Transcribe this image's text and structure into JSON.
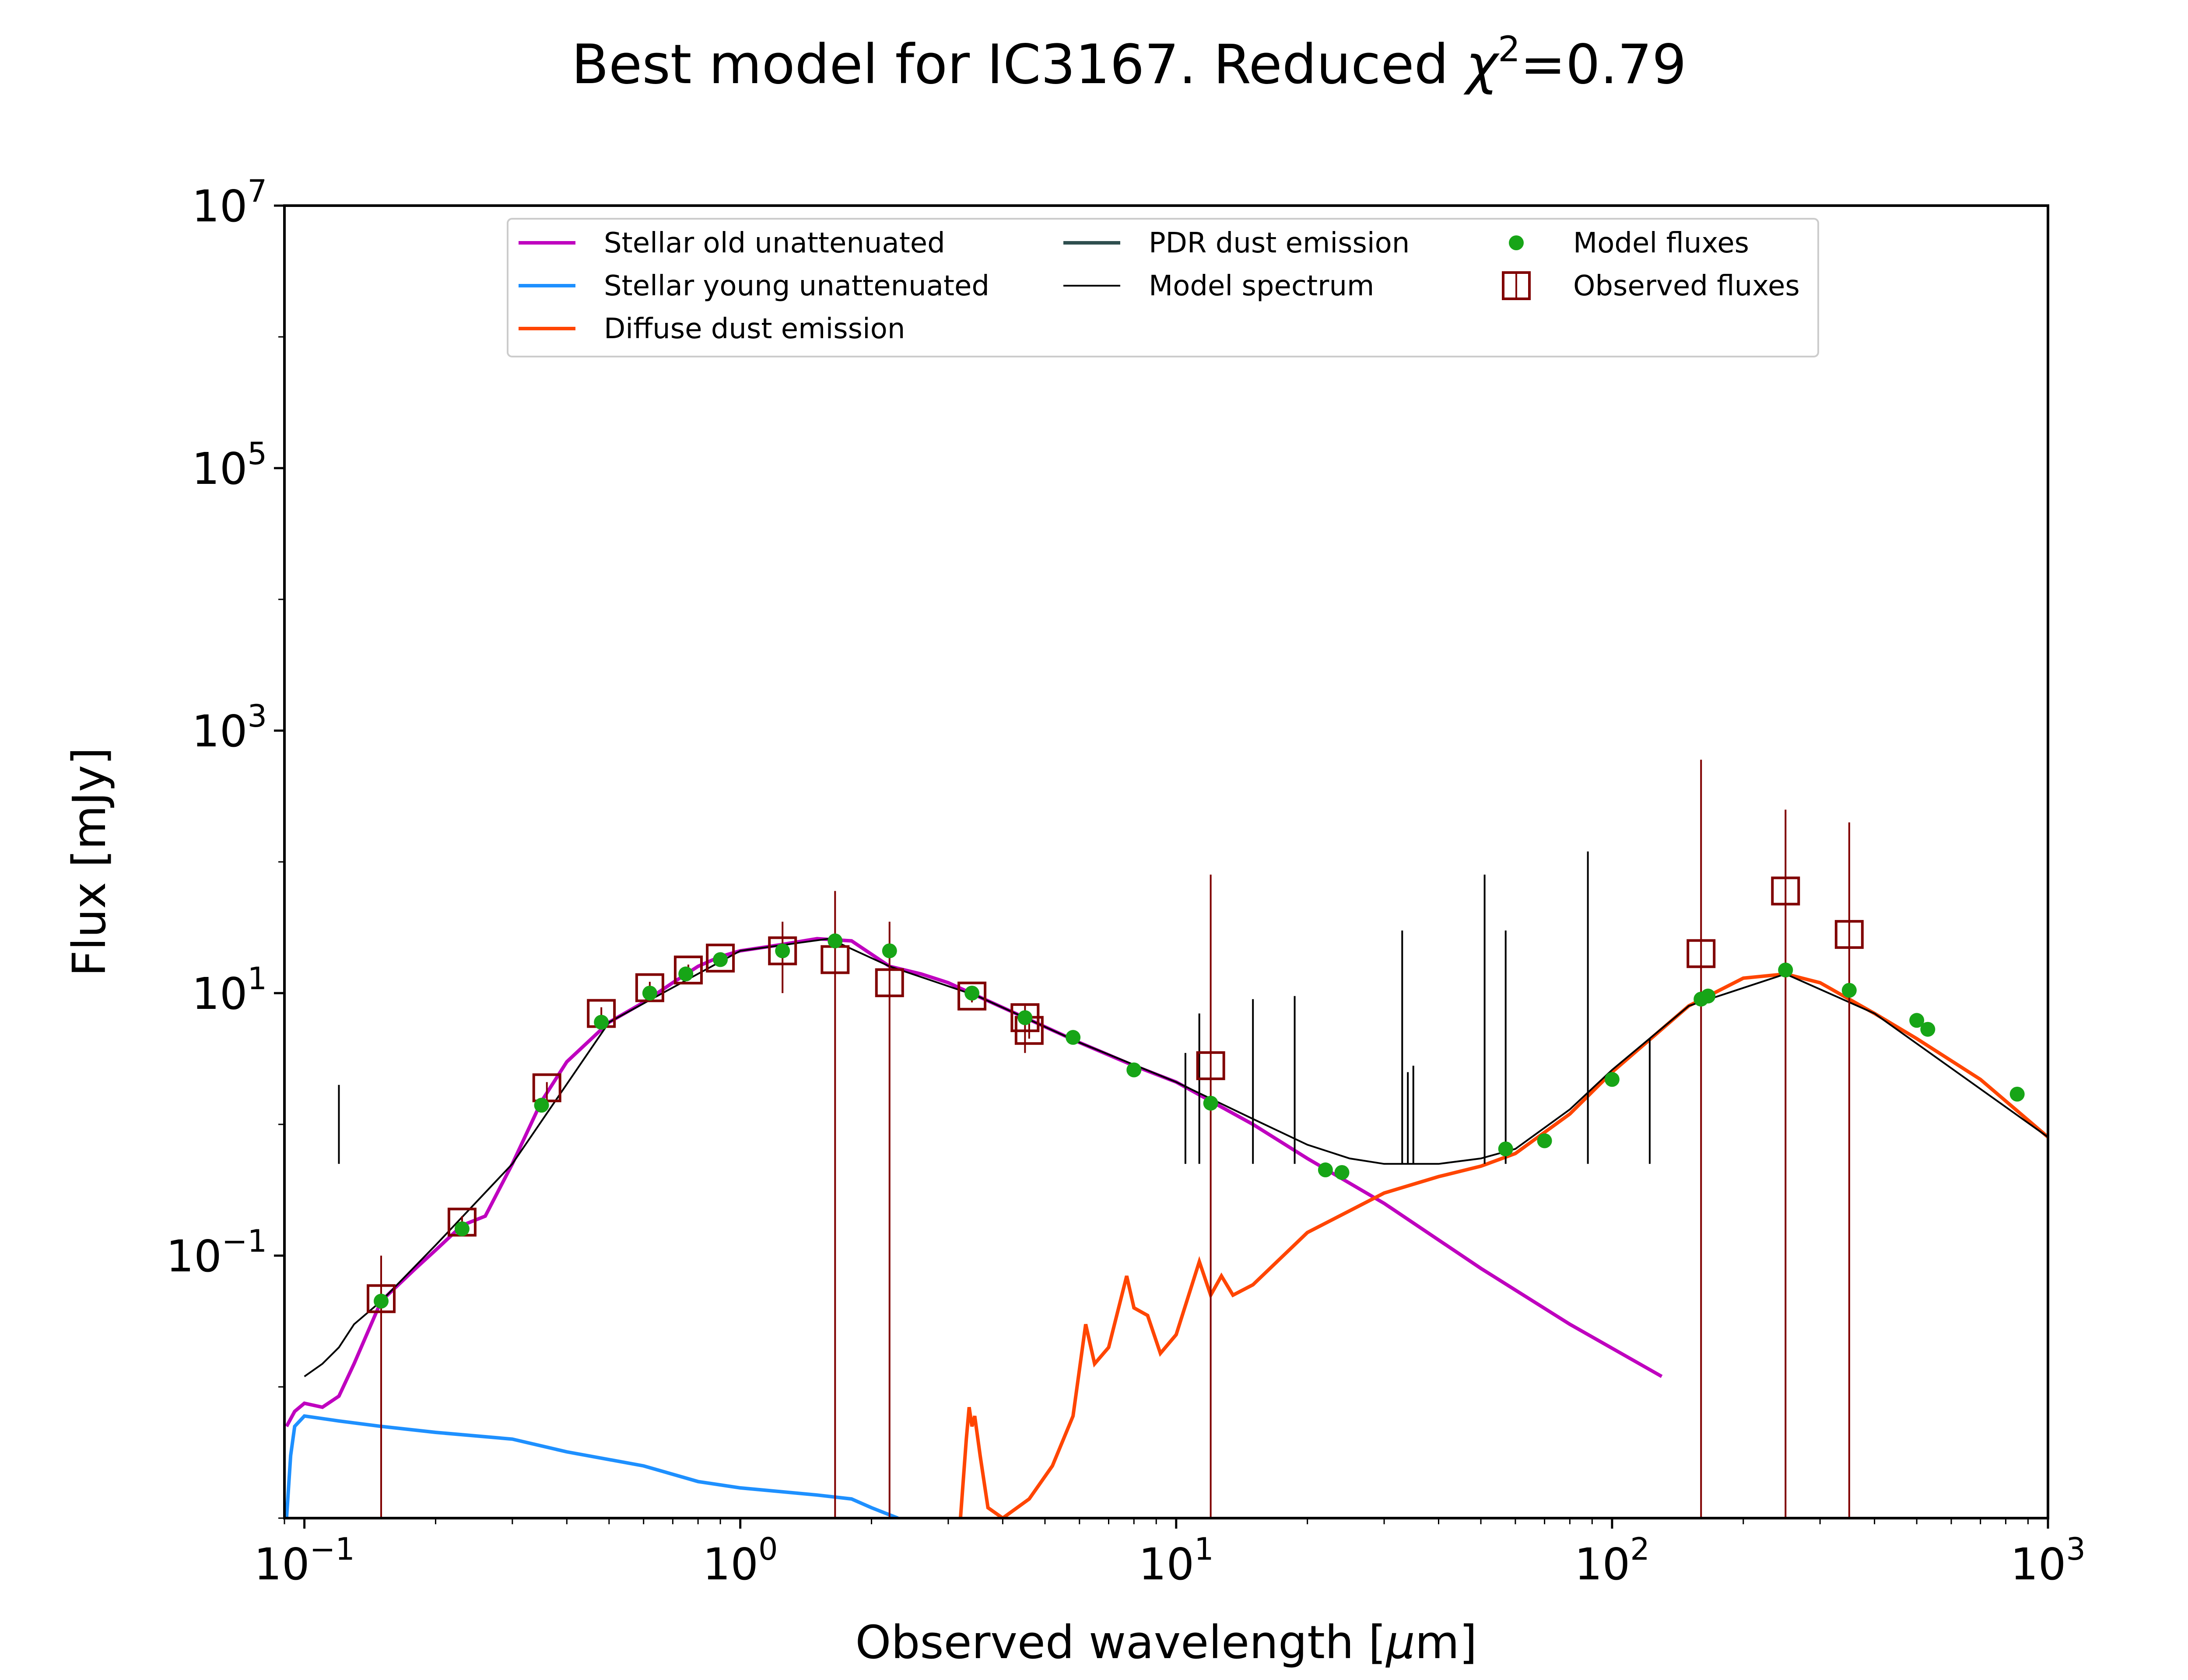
{
  "chart_data": {
    "type": "line",
    "title": "Best model for IC3167. Reduced χ²=0.79",
    "title_parts": {
      "main": "Best model for IC3167. Reduced ",
      "chi": "χ",
      "sup": "2",
      "eq": "=0.79"
    },
    "xlabel": "Observed wavelength [μm]",
    "xlabel_parts": {
      "pre": "Observed wavelength [",
      "mu": "μ",
      "post": "m]"
    },
    "ylabel": "Flux [mJy]",
    "x_scale": "log",
    "y_scale": "log",
    "xlim": [
      0.09,
      1000
    ],
    "ylim": [
      0.001,
      10000000
    ],
    "x_ticks": [
      {
        "value": 0.1,
        "base": "10",
        "exp": "−1"
      },
      {
        "value": 1,
        "base": "10",
        "exp": "0"
      },
      {
        "value": 10,
        "base": "10",
        "exp": "1"
      },
      {
        "value": 100,
        "base": "10",
        "exp": "2"
      },
      {
        "value": 1000,
        "base": "10",
        "exp": "3"
      }
    ],
    "y_ticks": [
      {
        "value": 0.1,
        "base": "10",
        "exp": "−1"
      },
      {
        "value": 10,
        "base": "10",
        "exp": "1"
      },
      {
        "value": 1000,
        "base": "10",
        "exp": "3"
      },
      {
        "value": 100000,
        "base": "10",
        "exp": "5"
      },
      {
        "value": 10000000,
        "base": "10",
        "exp": "7"
      }
    ],
    "legend_position": "top-center",
    "legend": [
      {
        "label": "Stellar old unattenuated",
        "color": "#bf00bf",
        "marker": "line"
      },
      {
        "label": "Stellar young unattenuated",
        "color": "#1e90ff",
        "marker": "line"
      },
      {
        "label": "Diffuse dust emission",
        "color": "#ff4500",
        "marker": "line"
      },
      {
        "label": "PDR dust emission",
        "color": "#2f4f4f",
        "marker": "line"
      },
      {
        "label": "Model spectrum",
        "color": "#000000",
        "marker": "thinline"
      },
      {
        "label": "Model fluxes",
        "color": "#17a517",
        "marker": "dot"
      },
      {
        "label": "Observed fluxes",
        "color": "#800000",
        "marker": "square"
      }
    ],
    "series": [
      {
        "name": "Stellar old unattenuated",
        "color": "#bf00bf",
        "points": [
          [
            0.091,
            0.005
          ],
          [
            0.095,
            0.0065
          ],
          [
            0.1,
            0.0075
          ],
          [
            0.11,
            0.007
          ],
          [
            0.12,
            0.0085
          ],
          [
            0.13,
            0.015
          ],
          [
            0.15,
            0.045
          ],
          [
            0.18,
            0.08
          ],
          [
            0.2,
            0.11
          ],
          [
            0.23,
            0.17
          ],
          [
            0.26,
            0.2
          ],
          [
            0.3,
            0.5
          ],
          [
            0.35,
            1.5
          ],
          [
            0.4,
            3
          ],
          [
            0.5,
            6
          ],
          [
            0.6,
            8.5
          ],
          [
            0.7,
            12
          ],
          [
            0.8,
            16
          ],
          [
            0.9,
            19
          ],
          [
            1.0,
            21
          ],
          [
            1.2,
            23
          ],
          [
            1.5,
            26
          ],
          [
            1.8,
            25
          ],
          [
            2.2,
            16
          ],
          [
            2.6,
            14
          ],
          [
            3.0,
            12
          ],
          [
            3.5,
            9.5
          ],
          [
            4.5,
            6.5
          ],
          [
            6,
            4.2
          ],
          [
            8,
            2.8
          ],
          [
            10,
            2.1
          ],
          [
            15,
            1.0
          ],
          [
            20,
            0.55
          ],
          [
            30,
            0.25
          ],
          [
            50,
            0.08
          ],
          [
            80,
            0.03
          ],
          [
            130,
            0.012
          ]
        ]
      },
      {
        "name": "Stellar young unattenuated",
        "color": "#1e90ff",
        "points": [
          [
            0.091,
            0.001
          ],
          [
            0.093,
            0.003
          ],
          [
            0.095,
            0.005
          ],
          [
            0.1,
            0.006
          ],
          [
            0.12,
            0.0055
          ],
          [
            0.15,
            0.005
          ],
          [
            0.2,
            0.0045
          ],
          [
            0.3,
            0.004
          ],
          [
            0.4,
            0.0032
          ],
          [
            0.6,
            0.0025
          ],
          [
            0.8,
            0.0019
          ],
          [
            1.0,
            0.0017
          ],
          [
            1.5,
            0.0015
          ],
          [
            1.8,
            0.0014
          ],
          [
            2.0,
            0.0012
          ],
          [
            2.3,
            0.001
          ]
        ]
      },
      {
        "name": "Diffuse dust emission",
        "color": "#ff4500",
        "points": [
          [
            3.2,
            0.001
          ],
          [
            3.3,
            0.004
          ],
          [
            3.35,
            0.007
          ],
          [
            3.4,
            0.005
          ],
          [
            3.45,
            0.006
          ],
          [
            3.55,
            0.003
          ],
          [
            3.7,
            0.0012
          ],
          [
            4.0,
            0.001
          ],
          [
            4.6,
            0.0014
          ],
          [
            5.2,
            0.0025
          ],
          [
            5.8,
            0.006
          ],
          [
            6.2,
            0.03
          ],
          [
            6.5,
            0.015
          ],
          [
            7.0,
            0.02
          ],
          [
            7.7,
            0.07
          ],
          [
            8.0,
            0.04
          ],
          [
            8.6,
            0.035
          ],
          [
            9.2,
            0.018
          ],
          [
            10.0,
            0.025
          ],
          [
            11.3,
            0.09
          ],
          [
            12.0,
            0.05
          ],
          [
            12.7,
            0.07
          ],
          [
            13.5,
            0.05
          ],
          [
            15,
            0.06
          ],
          [
            20,
            0.15
          ],
          [
            30,
            0.3
          ],
          [
            40,
            0.4
          ],
          [
            50,
            0.48
          ],
          [
            60,
            0.6
          ],
          [
            80,
            1.2
          ],
          [
            100,
            2.5
          ],
          [
            150,
            8
          ],
          [
            200,
            13
          ],
          [
            250,
            14
          ],
          [
            300,
            12
          ],
          [
            400,
            7
          ],
          [
            500,
            4.5
          ],
          [
            700,
            2.2
          ],
          [
            1000,
            0.8
          ]
        ]
      },
      {
        "name": "Model spectrum",
        "color": "#000000",
        "points": [
          [
            0.1,
            0.012
          ],
          [
            0.11,
            0.015
          ],
          [
            0.12,
            0.02
          ],
          [
            0.13,
            0.03
          ],
          [
            0.15,
            0.045
          ],
          [
            0.2,
            0.12
          ],
          [
            0.3,
            0.5
          ],
          [
            0.5,
            6
          ],
          [
            1.0,
            21
          ],
          [
            1.6,
            26
          ],
          [
            2.2,
            16
          ],
          [
            3.5,
            9.5
          ],
          [
            6,
            4.2
          ],
          [
            10,
            2.1
          ],
          [
            15,
            1.1
          ],
          [
            20,
            0.7
          ],
          [
            25,
            0.55
          ],
          [
            30,
            0.5
          ],
          [
            40,
            0.5
          ],
          [
            50,
            0.55
          ],
          [
            60,
            0.65
          ],
          [
            80,
            1.3
          ],
          [
            100,
            2.6
          ],
          [
            150,
            8
          ],
          [
            250,
            14
          ],
          [
            400,
            7
          ],
          [
            1000,
            0.8
          ]
        ],
        "lines": [
          [
            0.12,
            2
          ],
          [
            10.5,
            3.5
          ],
          [
            11.3,
            7
          ],
          [
            15,
            9
          ],
          [
            18.7,
            9.5
          ],
          [
            33,
            30
          ],
          [
            34,
            2.5
          ],
          [
            35,
            2.8
          ],
          [
            51,
            80
          ],
          [
            57,
            30
          ],
          [
            88,
            120
          ],
          [
            122,
            4.5
          ]
        ]
      }
    ],
    "model_fluxes": {
      "color": "#17a517",
      "x": [
        0.15,
        0.23,
        0.35,
        0.48,
        0.62,
        0.75,
        0.9,
        1.25,
        1.65,
        2.2,
        3.4,
        4.5,
        5.8,
        8.0,
        12.0,
        22,
        24,
        57,
        70,
        100,
        160,
        166,
        250,
        350,
        500,
        530,
        850
      ],
      "y": [
        0.045,
        0.16,
        1.4,
        6.0,
        10.0,
        14.0,
        18.0,
        21.0,
        25.0,
        21.0,
        10.0,
        6.5,
        4.6,
        2.6,
        1.45,
        0.45,
        0.43,
        0.65,
        0.75,
        2.2,
        9.0,
        9.5,
        15.0,
        10.5,
        6.2,
        5.3,
        1.7
      ]
    },
    "observed_fluxes": {
      "color": "#800000",
      "x": [
        0.15,
        0.23,
        0.36,
        0.48,
        0.62,
        0.76,
        0.9,
        1.25,
        1.65,
        2.2,
        3.4,
        4.5,
        4.6,
        12.0,
        160,
        250,
        350
      ],
      "y": [
        0.047,
        0.18,
        1.9,
        7.0,
        11.0,
        15.0,
        18.5,
        21.0,
        18.0,
        12.0,
        9.5,
        6.5,
        5.2,
        2.8,
        20.0,
        60.0,
        28.0
      ],
      "err_low": [
        0.001,
        0.16,
        1.4,
        6.2,
        9.8,
        13.5,
        17.0,
        10.0,
        0.001,
        0.001,
        8.5,
        3.5,
        4.5,
        0.001,
        0.001,
        0.001,
        0.001
      ],
      "err_high": [
        0.1,
        0.2,
        2.1,
        7.8,
        12.2,
        16.5,
        20.0,
        35.0,
        60.0,
        35.0,
        10.5,
        8.0,
        6.0,
        80.0,
        600.0,
        250.0,
        200.0
      ]
    }
  }
}
